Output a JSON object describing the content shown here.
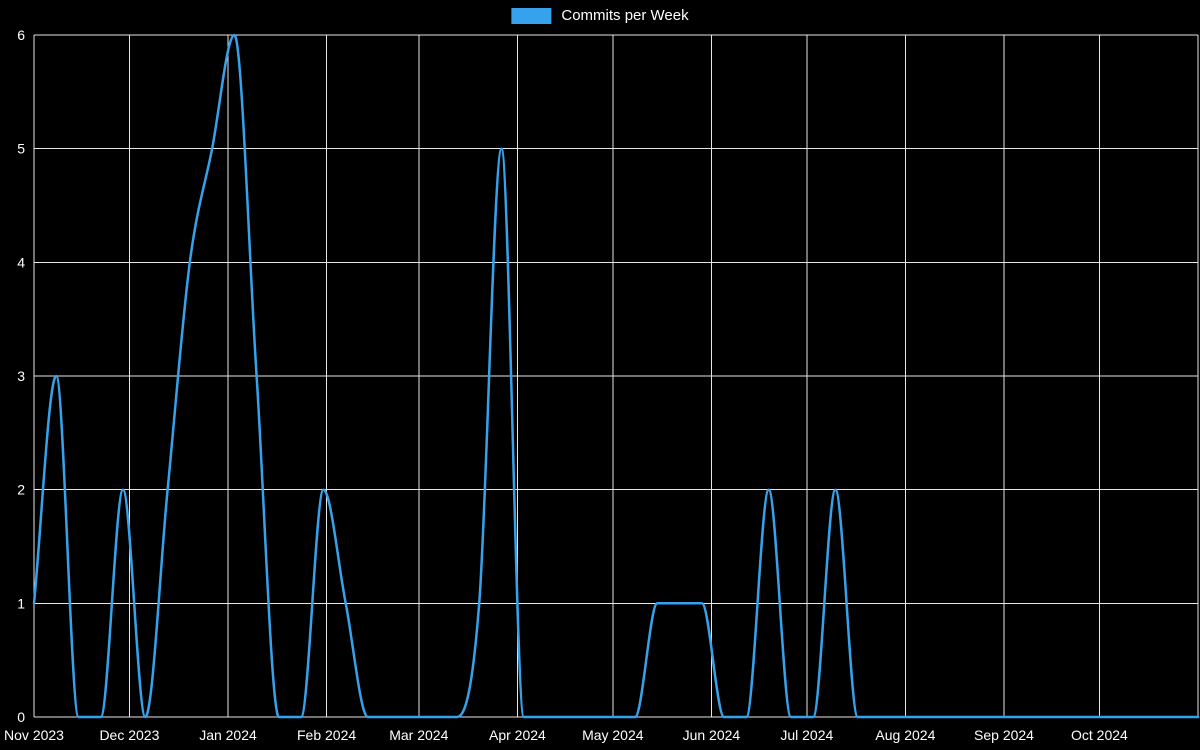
{
  "chart_data": {
    "type": "line",
    "title": "Commits per Week",
    "series_name": "Commits per Week",
    "line_color": "#36a2eb",
    "background": "#000000",
    "grid_color": "#e6e6e6",
    "text_color": "#ffffff",
    "smooth": true,
    "legend_position": "top-center",
    "ylim": [
      0,
      6
    ],
    "y_ticks": [
      0,
      1,
      2,
      3,
      4,
      5,
      6
    ],
    "x_start_date": "2023-11-01",
    "x_span_days": 366,
    "point_interval_days": 7,
    "values": [
      1,
      3,
      0,
      0,
      2,
      0,
      2,
      4,
      5,
      6,
      3,
      0,
      0,
      2,
      1,
      0,
      0,
      0,
      0,
      0,
      1,
      5,
      0,
      0,
      0,
      0,
      0,
      0,
      1,
      1,
      1,
      0,
      0,
      2,
      0,
      0,
      2,
      0,
      0,
      0,
      0,
      0,
      0,
      0,
      0,
      0,
      0,
      0,
      0,
      0,
      0,
      0,
      0
    ],
    "x_ticks": [
      {
        "label": "Nov 2023",
        "day": 0
      },
      {
        "label": "Dec 2023",
        "day": 30
      },
      {
        "label": "Jan 2024",
        "day": 61
      },
      {
        "label": "Feb 2024",
        "day": 92
      },
      {
        "label": "Mar 2024",
        "day": 121
      },
      {
        "label": "Apr 2024",
        "day": 152
      },
      {
        "label": "May 2024",
        "day": 182
      },
      {
        "label": "Jun 2024",
        "day": 213
      },
      {
        "label": "Jul 2024",
        "day": 243
      },
      {
        "label": "Aug 2024",
        "day": 274
      },
      {
        "label": "Sep 2024",
        "day": 305
      },
      {
        "label": "Oct 2024",
        "day": 335
      }
    ]
  }
}
